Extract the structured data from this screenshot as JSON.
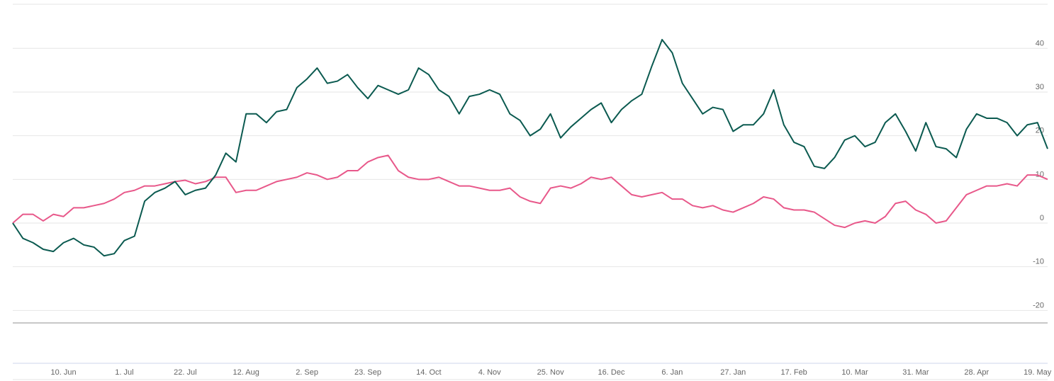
{
  "chart_data": {
    "type": "line",
    "categories": [
      null,
      null,
      null,
      null,
      null,
      "10. Jun",
      null,
      null,
      null,
      null,
      null,
      "1. Jul",
      null,
      null,
      null,
      null,
      null,
      "22. Jul",
      null,
      null,
      null,
      null,
      null,
      "12. Aug",
      null,
      null,
      null,
      null,
      null,
      "2. Sep",
      null,
      null,
      null,
      null,
      null,
      "23. Sep",
      null,
      null,
      null,
      null,
      null,
      "14. Oct",
      null,
      null,
      null,
      null,
      null,
      "4. Nov",
      null,
      null,
      null,
      null,
      null,
      "25. Nov",
      null,
      null,
      null,
      null,
      null,
      "16. Dec",
      null,
      null,
      null,
      null,
      null,
      "6. Jan",
      null,
      null,
      null,
      null,
      null,
      "27. Jan",
      null,
      null,
      null,
      null,
      null,
      "17. Feb",
      null,
      null,
      null,
      null,
      null,
      "10. Mar",
      null,
      null,
      null,
      null,
      null,
      "31. Mar",
      null,
      null,
      null,
      null,
      null,
      "28. Apr",
      null,
      null,
      null,
      null,
      null,
      "19. May",
      null
    ],
    "series": [
      {
        "color": "#0b5a50",
        "values": [
          0,
          -3.5,
          -4.5,
          -6,
          -6.5,
          -4.5,
          -3.5,
          -5,
          -5.5,
          -7.5,
          -7,
          -4,
          -3,
          5,
          7,
          8,
          9.5,
          6.5,
          7.5,
          8,
          11,
          16,
          14,
          25,
          25,
          23,
          25.5,
          26,
          31,
          33,
          35.5,
          32,
          32.5,
          34,
          31,
          28.5,
          31.5,
          30.5,
          29.5,
          30.5,
          35.5,
          34,
          30.5,
          29,
          25,
          29,
          29.5,
          30.5,
          29.5,
          25,
          23.5,
          20,
          21.5,
          25,
          19.5,
          22,
          24,
          26,
          27.5,
          23,
          26,
          28,
          29.5,
          36,
          42,
          39,
          32,
          28.5,
          25,
          26.5,
          26,
          21,
          22.5,
          22.5,
          25,
          30.5,
          22.5,
          18.5,
          17.5,
          13,
          12.5,
          15,
          19,
          20,
          17.5,
          18.5,
          23,
          25,
          21,
          16.5,
          23,
          17.5,
          17,
          15,
          21.5,
          25,
          24,
          24,
          23,
          20,
          22.5,
          23,
          17
        ]
      },
      {
        "color": "#e8588a",
        "values": [
          0,
          2,
          2,
          0.5,
          2,
          1.5,
          3.5,
          3.5,
          4,
          4.5,
          5.5,
          7,
          7.5,
          8.5,
          8.5,
          9,
          9.5,
          9.8,
          9,
          9.5,
          10.5,
          10.5,
          7,
          7.5,
          7.5,
          8.5,
          9.5,
          10,
          10.5,
          11.5,
          11,
          10,
          10.5,
          12,
          12,
          14,
          15,
          15.5,
          12,
          10.5,
          10,
          10,
          10.5,
          9.5,
          8.5,
          8.5,
          8,
          7.5,
          7.5,
          8,
          6,
          5,
          4.5,
          8,
          8.5,
          8,
          9,
          10.5,
          10,
          10.5,
          8.5,
          6.5,
          6,
          6.5,
          7,
          5.5,
          5.5,
          4,
          3.5,
          4,
          3,
          2.5,
          3.5,
          4.5,
          6,
          5.5,
          3.5,
          3,
          3,
          2.5,
          1,
          -0.5,
          -1,
          0,
          0.5,
          0,
          1.5,
          4.5,
          5,
          3,
          2,
          0,
          0.5,
          3.5,
          6.5,
          7.5,
          8.5,
          8.5,
          9,
          8.5,
          11,
          11,
          10
        ]
      }
    ],
    "ylim": [
      -22.7,
      50.1
    ],
    "yticks": [
      -20,
      -10,
      0,
      10,
      20,
      30,
      40
    ],
    "grid": true
  }
}
